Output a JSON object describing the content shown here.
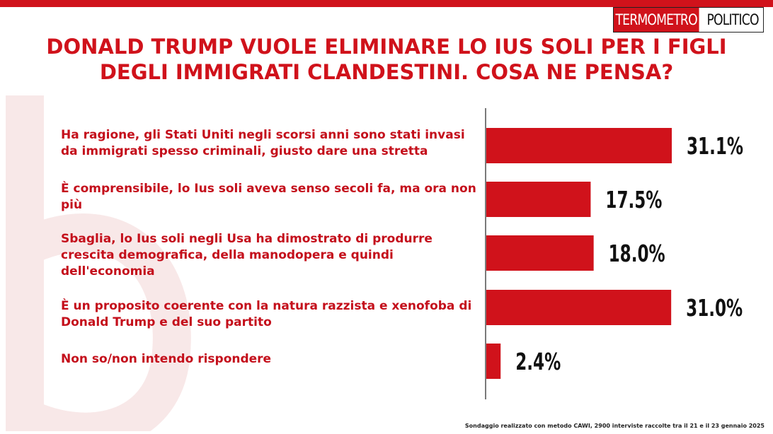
{
  "brand": {
    "logo_part_1": "TERMOMETRO",
    "logo_part_2": "POLITICO",
    "accent_color": "#d0121b"
  },
  "title": "DONALD TRUMP VUOLE ELIMINARE LO IUS SOLI PER I FIGLI DEGLI IMMIGRATI CLANDESTINI. COSA NE PENSA?",
  "footer": "Sondaggio realizzato con metodo CAWI, 2900 interviste raccolte tra il 21 e il 23 gennaio 2025",
  "chart_data": {
    "type": "bar",
    "orientation": "horizontal",
    "categories": [
      "Ha ragione, gli Stati Uniti negli scorsi anni sono stati invasi da immigrati spesso criminali, giusto dare una stretta",
      "È comprensibile, lo Ius soli aveva senso secoli fa, ma ora non più",
      "Sbaglia, lo Ius soli negli Usa ha dimostrato di produrre crescita demografica, della manodopera e quindi dell'economia",
      "È un proposito coerente con la natura razzista e xenofoba di Donald Trump e del suo partito",
      "Non so/non intendo rispondere"
    ],
    "values": [
      31.1,
      17.5,
      18.0,
      31.0,
      2.4
    ],
    "value_labels": [
      "31.1%",
      "17.5%",
      "18.0%",
      "31.0%",
      "2.4%"
    ],
    "bar_color": "#d0121b",
    "title": "DONALD TRUMP VUOLE ELIMINARE LO IUS SOLI PER I FIGLI DEGLI IMMIGRATI CLANDESTINI. COSA NE PENSA?",
    "xlabel": "",
    "ylabel": "",
    "grid": false,
    "legend": "none"
  }
}
